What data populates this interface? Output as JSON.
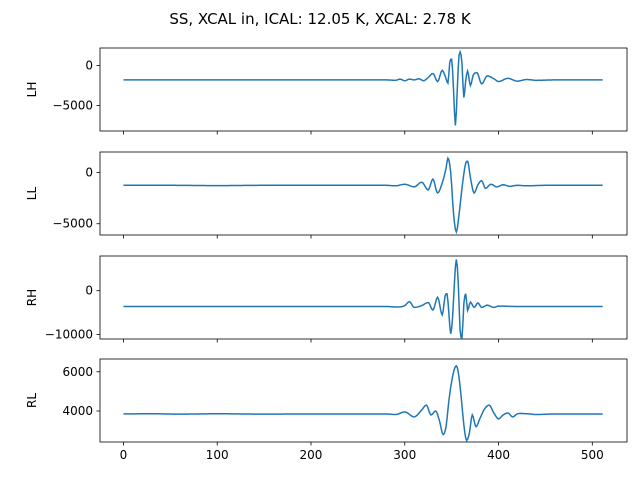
{
  "figure": {
    "title": "SS, XCAL in, ICAL: 12.05 K, XCAL: 2.78 K"
  },
  "chart_data": [
    {
      "type": "line",
      "ylabel": "LH",
      "xlim": [
        -25,
        537
      ],
      "ylim": [
        -8200,
        2200
      ],
      "xticks": [
        0,
        100,
        200,
        300,
        400,
        500
      ],
      "yticks": [
        0,
        -5000
      ],
      "ytick_labels": [
        "0",
        "−5000"
      ],
      "show_xtick_labels": false,
      "color": "#1f77b4",
      "baseline": -1800,
      "center": 355,
      "points": [
        [
          0,
          -1800
        ],
        [
          100,
          -1800
        ],
        [
          200,
          -1800
        ],
        [
          280,
          -1800
        ],
        [
          290,
          -1850
        ],
        [
          295,
          -1700
        ],
        [
          300,
          -1900
        ],
        [
          305,
          -1700
        ],
        [
          310,
          -1800
        ],
        [
          315,
          -1650
        ],
        [
          320,
          -1900
        ],
        [
          325,
          -1500
        ],
        [
          330,
          -1000
        ],
        [
          335,
          -2000
        ],
        [
          340,
          -600
        ],
        [
          343,
          -1300
        ],
        [
          346,
          -2200
        ],
        [
          348,
          400
        ],
        [
          350,
          800
        ],
        [
          352,
          -3000
        ],
        [
          354,
          -7500
        ],
        [
          356,
          -3000
        ],
        [
          357.5,
          800
        ],
        [
          359,
          1700
        ],
        [
          361,
          300
        ],
        [
          363,
          -4000
        ],
        [
          365,
          -1900
        ],
        [
          367,
          -700
        ],
        [
          370,
          -2500
        ],
        [
          373,
          -1200
        ],
        [
          377,
          -900
        ],
        [
          382,
          -2300
        ],
        [
          388,
          -1300
        ],
        [
          395,
          -1650
        ],
        [
          400,
          -2000
        ],
        [
          410,
          -1600
        ],
        [
          420,
          -1950
        ],
        [
          430,
          -1750
        ],
        [
          440,
          -1850
        ],
        [
          460,
          -1800
        ],
        [
          511,
          -1800
        ]
      ]
    },
    {
      "type": "line",
      "ylabel": "LL",
      "xlim": [
        -25,
        537
      ],
      "ylim": [
        -6100,
        2000
      ],
      "xticks": [
        0,
        100,
        200,
        300,
        400,
        500
      ],
      "yticks": [
        0,
        -5000
      ],
      "ytick_labels": [
        "0",
        "−5000"
      ],
      "show_xtick_labels": false,
      "color": "#1f77b4",
      "baseline": -1250,
      "center": 355,
      "points": [
        [
          0,
          -1250
        ],
        [
          50,
          -1250
        ],
        [
          100,
          -1280
        ],
        [
          150,
          -1250
        ],
        [
          200,
          -1250
        ],
        [
          250,
          -1250
        ],
        [
          280,
          -1250
        ],
        [
          290,
          -1300
        ],
        [
          300,
          -1150
        ],
        [
          310,
          -1400
        ],
        [
          318,
          -950
        ],
        [
          325,
          -1700
        ],
        [
          330,
          -650
        ],
        [
          335,
          -2000
        ],
        [
          340,
          -1000
        ],
        [
          344,
          400
        ],
        [
          346,
          1400
        ],
        [
          349,
          0
        ],
        [
          352,
          -4000
        ],
        [
          355,
          -5800
        ],
        [
          358,
          -4000
        ],
        [
          362,
          -800
        ],
        [
          365,
          900
        ],
        [
          367,
          1100
        ],
        [
          370,
          -500
        ],
        [
          374,
          -2000
        ],
        [
          378,
          -1200
        ],
        [
          382,
          -800
        ],
        [
          386,
          -1550
        ],
        [
          392,
          -1150
        ],
        [
          398,
          -1400
        ],
        [
          405,
          -1200
        ],
        [
          412,
          -1350
        ],
        [
          420,
          -1250
        ],
        [
          430,
          -1300
        ],
        [
          450,
          -1250
        ],
        [
          511,
          -1250
        ]
      ]
    },
    {
      "type": "line",
      "ylabel": "RH",
      "xlim": [
        -25,
        537
      ],
      "ylim": [
        -11000,
        7900
      ],
      "xticks": [
        0,
        100,
        200,
        300,
        400,
        500
      ],
      "yticks": [
        0,
        -10000
      ],
      "ytick_labels": [
        "0",
        "−10000"
      ],
      "show_xtick_labels": false,
      "color": "#1f77b4",
      "baseline": -3600,
      "center": 355,
      "points": [
        [
          0,
          -3600
        ],
        [
          100,
          -3600
        ],
        [
          200,
          -3600
        ],
        [
          280,
          -3600
        ],
        [
          290,
          -3700
        ],
        [
          300,
          -3400
        ],
        [
          305,
          -2500
        ],
        [
          310,
          -3800
        ],
        [
          318,
          -3400
        ],
        [
          325,
          -2700
        ],
        [
          330,
          -4400
        ],
        [
          335,
          -1500
        ],
        [
          340,
          -5500
        ],
        [
          343,
          -1200
        ],
        [
          345,
          -700
        ],
        [
          347,
          -5000
        ],
        [
          349,
          -9800
        ],
        [
          351,
          -6000
        ],
        [
          353,
          2000
        ],
        [
          355,
          7100
        ],
        [
          357,
          2000
        ],
        [
          359,
          -9000
        ],
        [
          361,
          -10700
        ],
        [
          363,
          -3000
        ],
        [
          365,
          -700
        ],
        [
          367,
          -4500
        ],
        [
          370,
          -2600
        ],
        [
          374,
          -3800
        ],
        [
          378,
          -2800
        ],
        [
          382,
          -3800
        ],
        [
          388,
          -3300
        ],
        [
          395,
          -3800
        ],
        [
          400,
          -3500
        ],
        [
          420,
          -3600
        ],
        [
          511,
          -3600
        ]
      ]
    },
    {
      "type": "line",
      "ylabel": "RL",
      "xlim": [
        -25,
        537
      ],
      "ylim": [
        2420,
        6650
      ],
      "xticks": [
        0,
        100,
        200,
        300,
        400,
        500
      ],
      "yticks": [
        4000,
        6000
      ],
      "ytick_labels": [
        "4000",
        "6000"
      ],
      "show_xtick_labels": true,
      "color": "#1f77b4",
      "baseline": 3850,
      "center": 355,
      "points": [
        [
          0,
          3850
        ],
        [
          30,
          3860
        ],
        [
          60,
          3840
        ],
        [
          100,
          3860
        ],
        [
          150,
          3840
        ],
        [
          200,
          3850
        ],
        [
          250,
          3850
        ],
        [
          280,
          3850
        ],
        [
          290,
          3820
        ],
        [
          300,
          3950
        ],
        [
          310,
          3700
        ],
        [
          318,
          4050
        ],
        [
          323,
          4300
        ],
        [
          328,
          3800
        ],
        [
          333,
          4000
        ],
        [
          337,
          3500
        ],
        [
          341,
          2800
        ],
        [
          344,
          3200
        ],
        [
          347,
          4500
        ],
        [
          350,
          5500
        ],
        [
          353,
          6150
        ],
        [
          355,
          6300
        ],
        [
          357,
          6000
        ],
        [
          360,
          4800
        ],
        [
          363,
          3300
        ],
        [
          366,
          2500
        ],
        [
          369,
          2900
        ],
        [
          372,
          3800
        ],
        [
          376,
          3200
        ],
        [
          380,
          3600
        ],
        [
          385,
          4100
        ],
        [
          390,
          4300
        ],
        [
          395,
          3900
        ],
        [
          400,
          3600
        ],
        [
          405,
          3800
        ],
        [
          410,
          3900
        ],
        [
          415,
          3700
        ],
        [
          420,
          3850
        ],
        [
          430,
          3860
        ],
        [
          440,
          3820
        ],
        [
          460,
          3850
        ],
        [
          511,
          3850
        ]
      ]
    }
  ]
}
